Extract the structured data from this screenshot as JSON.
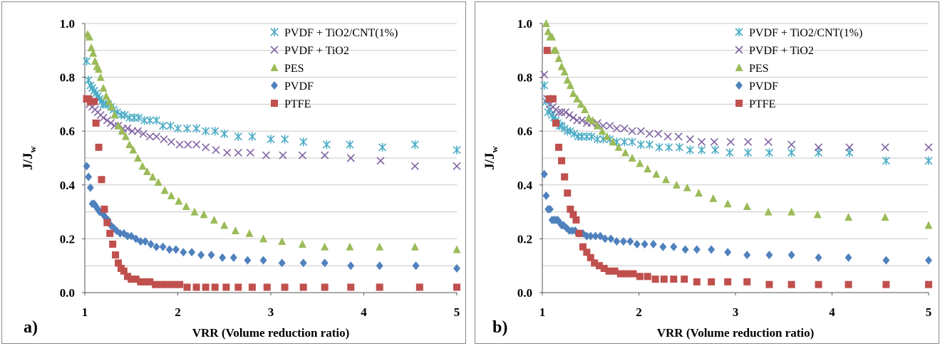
{
  "chart_data": [
    {
      "type": "scatter",
      "panel_label": "a)",
      "xlabel": "VRR (Volume reduction ratio)",
      "ylabel_main": "J/J",
      "ylabel_sub": "w",
      "xlim": [
        1,
        5
      ],
      "ylim": [
        0,
        1
      ],
      "xticks": [
        "1",
        "2",
        "3",
        "4",
        "5"
      ],
      "yticks": [
        "0.0",
        "0.2",
        "0.4",
        "0.6",
        "0.8",
        "1.0"
      ],
      "grid": "horizontal",
      "legend": "top-right",
      "series": [
        {
          "name": "PVDF + TiO2/CNT(1%)",
          "marker": "star",
          "color": "#4bacc6",
          "x": [
            1.02,
            1.04,
            1.06,
            1.08,
            1.1,
            1.12,
            1.14,
            1.16,
            1.18,
            1.2,
            1.22,
            1.25,
            1.28,
            1.31,
            1.35,
            1.39,
            1.43,
            1.48,
            1.53,
            1.58,
            1.64,
            1.7,
            1.77,
            1.84,
            1.92,
            2.0,
            2.1,
            2.2,
            2.3,
            2.4,
            2.5,
            2.65,
            2.8,
            3.0,
            3.15,
            3.35,
            3.6,
            3.85,
            4.2,
            4.55,
            5.0
          ],
          "y": [
            0.86,
            0.79,
            0.77,
            0.76,
            0.75,
            0.74,
            0.73,
            0.72,
            0.71,
            0.7,
            0.7,
            0.7,
            0.69,
            0.68,
            0.67,
            0.66,
            0.66,
            0.65,
            0.65,
            0.65,
            0.64,
            0.64,
            0.64,
            0.62,
            0.62,
            0.61,
            0.61,
            0.61,
            0.6,
            0.6,
            0.59,
            0.58,
            0.58,
            0.57,
            0.57,
            0.56,
            0.55,
            0.55,
            0.54,
            0.55,
            0.53
          ]
        },
        {
          "name": "PVDF + TiO2",
          "marker": "x",
          "color": "#8064a2",
          "x": [
            1.02,
            1.05,
            1.08,
            1.11,
            1.14,
            1.17,
            1.2,
            1.24,
            1.28,
            1.32,
            1.36,
            1.41,
            1.46,
            1.51,
            1.57,
            1.63,
            1.7,
            1.77,
            1.85,
            1.93,
            2.02,
            2.11,
            2.2,
            2.3,
            2.41,
            2.53,
            2.65,
            2.78,
            2.95,
            3.13,
            3.34,
            3.58,
            3.86,
            4.18,
            4.55,
            5.0
          ],
          "y": [
            0.72,
            0.7,
            0.69,
            0.68,
            0.67,
            0.66,
            0.65,
            0.64,
            0.63,
            0.62,
            0.62,
            0.61,
            0.61,
            0.6,
            0.6,
            0.59,
            0.58,
            0.58,
            0.57,
            0.56,
            0.55,
            0.55,
            0.55,
            0.54,
            0.53,
            0.52,
            0.52,
            0.52,
            0.51,
            0.51,
            0.51,
            0.51,
            0.5,
            0.49,
            0.47,
            0.47
          ]
        },
        {
          "name": "PES",
          "marker": "triangle",
          "color": "#9bbb59",
          "x": [
            1.03,
            1.05,
            1.07,
            1.09,
            1.11,
            1.13,
            1.15,
            1.17,
            1.2,
            1.23,
            1.26,
            1.29,
            1.32,
            1.36,
            1.4,
            1.44,
            1.48,
            1.52,
            1.57,
            1.62,
            1.67,
            1.73,
            1.79,
            1.86,
            1.93,
            2.01,
            2.09,
            2.18,
            2.28,
            2.39,
            2.5,
            2.62,
            2.77,
            2.92,
            3.12,
            3.34,
            3.58,
            3.85,
            4.17,
            4.55,
            5.0
          ],
          "y": [
            0.96,
            0.95,
            0.91,
            0.89,
            0.86,
            0.84,
            0.83,
            0.8,
            0.76,
            0.73,
            0.71,
            0.69,
            0.66,
            0.62,
            0.6,
            0.58,
            0.55,
            0.53,
            0.5,
            0.47,
            0.45,
            0.43,
            0.41,
            0.38,
            0.36,
            0.34,
            0.32,
            0.3,
            0.29,
            0.27,
            0.25,
            0.23,
            0.22,
            0.2,
            0.19,
            0.18,
            0.17,
            0.17,
            0.17,
            0.17,
            0.16
          ]
        },
        {
          "name": "PVDF",
          "marker": "diamond",
          "color": "#4f81bd",
          "x": [
            1.02,
            1.04,
            1.06,
            1.08,
            1.1,
            1.12,
            1.14,
            1.16,
            1.18,
            1.2,
            1.22,
            1.25,
            1.28,
            1.31,
            1.34,
            1.38,
            1.42,
            1.46,
            1.5,
            1.55,
            1.6,
            1.65,
            1.71,
            1.77,
            1.84,
            1.91,
            1.98,
            2.06,
            2.15,
            2.25,
            2.36,
            2.48,
            2.6,
            2.75,
            2.92,
            3.12,
            3.35,
            3.58,
            3.86,
            4.17,
            4.56,
            5.0
          ],
          "y": [
            0.47,
            0.43,
            0.39,
            0.33,
            0.33,
            0.32,
            0.31,
            0.3,
            0.3,
            0.29,
            0.28,
            0.27,
            0.25,
            0.24,
            0.23,
            0.22,
            0.22,
            0.21,
            0.21,
            0.2,
            0.19,
            0.19,
            0.18,
            0.17,
            0.17,
            0.16,
            0.16,
            0.15,
            0.15,
            0.14,
            0.14,
            0.13,
            0.13,
            0.12,
            0.12,
            0.11,
            0.11,
            0.11,
            0.1,
            0.1,
            0.1,
            0.09
          ]
        },
        {
          "name": "PTFE",
          "marker": "square",
          "color": "#c0504d",
          "x": [
            1.02,
            1.04,
            1.06,
            1.08,
            1.1,
            1.12,
            1.15,
            1.18,
            1.21,
            1.24,
            1.27,
            1.3,
            1.33,
            1.36,
            1.39,
            1.42,
            1.46,
            1.5,
            1.55,
            1.6,
            1.65,
            1.7,
            1.76,
            1.82,
            1.88,
            1.95,
            2.02,
            2.1,
            2.2,
            2.3,
            2.4,
            2.52,
            2.65,
            2.8,
            2.96,
            3.15,
            3.35,
            3.58,
            3.86,
            4.17,
            4.6,
            5.0
          ],
          "y": [
            0.72,
            0.72,
            0.71,
            0.71,
            0.71,
            0.63,
            0.54,
            0.42,
            0.31,
            0.26,
            0.22,
            0.18,
            0.14,
            0.11,
            0.09,
            0.08,
            0.06,
            0.05,
            0.05,
            0.04,
            0.04,
            0.04,
            0.03,
            0.03,
            0.03,
            0.03,
            0.03,
            0.02,
            0.02,
            0.02,
            0.02,
            0.02,
            0.02,
            0.02,
            0.02,
            0.02,
            0.02,
            0.02,
            0.02,
            0.02,
            0.02,
            0.02
          ]
        }
      ]
    },
    {
      "type": "scatter",
      "panel_label": "b)",
      "xlabel": "VRR (Volume reduction ratio)",
      "ylabel_main": "J/J",
      "ylabel_sub": "w",
      "xlim": [
        1,
        5
      ],
      "ylim": [
        0,
        1
      ],
      "xticks": [
        "1",
        "2",
        "3",
        "4",
        "5"
      ],
      "yticks": [
        "0.0",
        "0.2",
        "0.4",
        "0.6",
        "0.8",
        "1.0"
      ],
      "grid": "horizontal",
      "legend": "top-right",
      "series": [
        {
          "name": "PVDF + TiO2/CNT(1%)",
          "marker": "star",
          "color": "#4bacc6",
          "x": [
            1.02,
            1.04,
            1.06,
            1.08,
            1.1,
            1.12,
            1.14,
            1.16,
            1.18,
            1.2,
            1.23,
            1.26,
            1.29,
            1.33,
            1.37,
            1.41,
            1.46,
            1.51,
            1.57,
            1.63,
            1.7,
            1.77,
            1.85,
            1.93,
            2.02,
            2.11,
            2.21,
            2.31,
            2.42,
            2.53,
            2.65,
            2.79,
            2.94,
            3.13,
            3.35,
            3.58,
            3.86,
            4.18,
            4.56,
            5.0
          ],
          "y": [
            0.77,
            0.71,
            0.67,
            0.68,
            0.66,
            0.65,
            0.64,
            0.63,
            0.62,
            0.62,
            0.61,
            0.6,
            0.6,
            0.59,
            0.58,
            0.58,
            0.58,
            0.58,
            0.57,
            0.57,
            0.57,
            0.56,
            0.56,
            0.56,
            0.55,
            0.55,
            0.54,
            0.54,
            0.54,
            0.53,
            0.53,
            0.53,
            0.52,
            0.52,
            0.52,
            0.52,
            0.52,
            0.52,
            0.49,
            0.49
          ]
        },
        {
          "name": "PVDF + TiO2",
          "marker": "x",
          "color": "#8064a2",
          "x": [
            1.02,
            1.05,
            1.08,
            1.11,
            1.14,
            1.17,
            1.2,
            1.24,
            1.28,
            1.32,
            1.36,
            1.41,
            1.46,
            1.51,
            1.57,
            1.63,
            1.7,
            1.77,
            1.85,
            1.93,
            2.02,
            2.11,
            2.2,
            2.3,
            2.41,
            2.53,
            2.65,
            2.78,
            2.95,
            3.13,
            3.34,
            3.58,
            3.86,
            4.18,
            4.55,
            5.0
          ],
          "y": [
            0.81,
            0.72,
            0.7,
            0.69,
            0.68,
            0.67,
            0.67,
            0.67,
            0.66,
            0.65,
            0.64,
            0.64,
            0.63,
            0.63,
            0.63,
            0.62,
            0.62,
            0.61,
            0.61,
            0.6,
            0.6,
            0.59,
            0.59,
            0.58,
            0.58,
            0.57,
            0.56,
            0.56,
            0.56,
            0.56,
            0.56,
            0.55,
            0.54,
            0.54,
            0.54,
            0.54
          ]
        },
        {
          "name": "PES",
          "marker": "triangle",
          "color": "#9bbb59",
          "x": [
            1.04,
            1.06,
            1.08,
            1.1,
            1.12,
            1.14,
            1.17,
            1.2,
            1.23,
            1.26,
            1.29,
            1.32,
            1.36,
            1.4,
            1.44,
            1.48,
            1.52,
            1.57,
            1.62,
            1.67,
            1.73,
            1.79,
            1.86,
            1.93,
            2.01,
            2.09,
            2.18,
            2.28,
            2.39,
            2.5,
            2.62,
            2.77,
            2.92,
            3.12,
            3.34,
            3.58,
            3.85,
            4.17,
            4.55,
            5.0
          ],
          "y": [
            1.0,
            0.97,
            0.95,
            0.95,
            0.9,
            0.9,
            0.87,
            0.84,
            0.82,
            0.79,
            0.77,
            0.74,
            0.72,
            0.7,
            0.68,
            0.65,
            0.64,
            0.62,
            0.6,
            0.58,
            0.56,
            0.54,
            0.52,
            0.5,
            0.48,
            0.46,
            0.44,
            0.42,
            0.4,
            0.39,
            0.37,
            0.35,
            0.33,
            0.32,
            0.3,
            0.3,
            0.29,
            0.28,
            0.28,
            0.25
          ]
        },
        {
          "name": "PVDF",
          "marker": "diamond",
          "color": "#4f81bd",
          "x": [
            1.02,
            1.04,
            1.06,
            1.08,
            1.1,
            1.12,
            1.14,
            1.16,
            1.18,
            1.2,
            1.22,
            1.25,
            1.28,
            1.31,
            1.34,
            1.38,
            1.42,
            1.46,
            1.5,
            1.55,
            1.6,
            1.65,
            1.71,
            1.77,
            1.84,
            1.91,
            1.98,
            2.06,
            2.15,
            2.25,
            2.36,
            2.48,
            2.6,
            2.75,
            2.92,
            3.12,
            3.35,
            3.58,
            3.86,
            4.17,
            4.56,
            5.0
          ],
          "y": [
            0.44,
            0.36,
            0.31,
            0.31,
            0.27,
            0.27,
            0.27,
            0.27,
            0.26,
            0.25,
            0.25,
            0.24,
            0.23,
            0.23,
            0.23,
            0.22,
            0.22,
            0.21,
            0.21,
            0.21,
            0.21,
            0.2,
            0.2,
            0.19,
            0.19,
            0.19,
            0.18,
            0.18,
            0.18,
            0.17,
            0.17,
            0.16,
            0.16,
            0.16,
            0.15,
            0.14,
            0.14,
            0.14,
            0.13,
            0.13,
            0.12,
            0.12
          ]
        },
        {
          "name": "PTFE",
          "marker": "square",
          "color": "#c0504d",
          "x": [
            1.05,
            1.07,
            1.09,
            1.11,
            1.14,
            1.17,
            1.2,
            1.23,
            1.26,
            1.29,
            1.32,
            1.35,
            1.38,
            1.42,
            1.46,
            1.5,
            1.54,
            1.59,
            1.64,
            1.69,
            1.75,
            1.81,
            1.87,
            1.94,
            2.01,
            2.09,
            2.17,
            2.26,
            2.36,
            2.47,
            2.6,
            2.75,
            2.92,
            3.12,
            3.35,
            3.58,
            3.86,
            4.17,
            4.56,
            5.0
          ],
          "y": [
            0.9,
            0.72,
            0.72,
            0.72,
            0.63,
            0.54,
            0.49,
            0.43,
            0.37,
            0.31,
            0.29,
            0.27,
            0.22,
            0.17,
            0.15,
            0.13,
            0.11,
            0.1,
            0.09,
            0.08,
            0.08,
            0.07,
            0.07,
            0.07,
            0.06,
            0.06,
            0.05,
            0.05,
            0.05,
            0.05,
            0.04,
            0.04,
            0.04,
            0.04,
            0.03,
            0.03,
            0.03,
            0.03,
            0.03,
            0.03
          ]
        }
      ]
    }
  ]
}
